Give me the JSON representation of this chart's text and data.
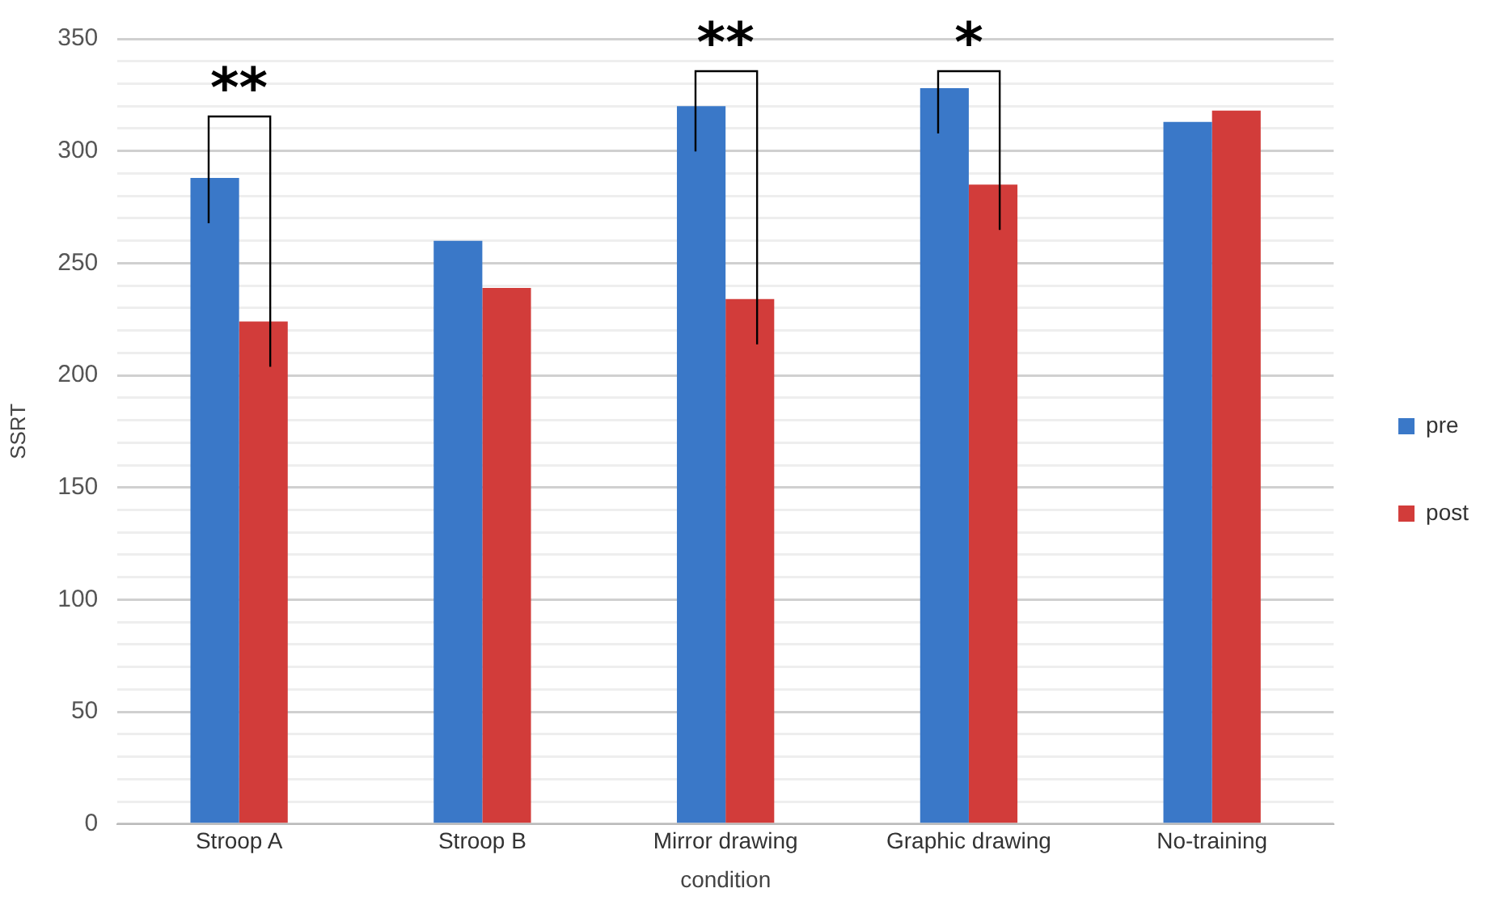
{
  "chart_data": {
    "type": "bar",
    "xlabel": "condition",
    "ylabel": "SSRT",
    "categories": [
      "Stroop A",
      "Stroop B",
      "Mirror drawing",
      "Graphic drawing",
      "No-training"
    ],
    "series": [
      {
        "name": "pre",
        "color": "#3a78c8",
        "values": [
          288,
          260,
          320,
          328,
          313
        ]
      },
      {
        "name": "post",
        "color": "#d23c3a",
        "values": [
          224,
          239,
          234,
          285,
          318
        ]
      }
    ],
    "ylim": [
      0,
      350
    ],
    "yticks": [
      0,
      {
        "value": 10,
        "label": null
      },
      {
        "value": 20,
        "label": null
      },
      {
        "value": 30,
        "label": null
      },
      {
        "value": 40,
        "label": null
      },
      50,
      {
        "value": 60,
        "label": null
      },
      {
        "value": 70,
        "label": null
      },
      {
        "value": 80,
        "label": null
      },
      {
        "value": 90,
        "label": null
      },
      100,
      {
        "value": 110,
        "label": null
      },
      {
        "value": 120,
        "label": null
      },
      {
        "value": 130,
        "label": null
      },
      {
        "value": 140,
        "label": null
      },
      150,
      {
        "value": 160,
        "label": null
      },
      {
        "value": 170,
        "label": null
      },
      {
        "value": 180,
        "label": null
      },
      {
        "value": 190,
        "label": null
      },
      200,
      {
        "value": 210,
        "label": null
      },
      {
        "value": 220,
        "label": null
      },
      {
        "value": 230,
        "label": null
      },
      {
        "value": 240,
        "label": null
      },
      250,
      {
        "value": 260,
        "label": null
      },
      {
        "value": 270,
        "label": null
      },
      {
        "value": 280,
        "label": null
      },
      {
        "value": 290,
        "label": null
      },
      300,
      {
        "value": 310,
        "label": null
      },
      {
        "value": 320,
        "label": null
      },
      {
        "value": 330,
        "label": null
      },
      {
        "value": 340,
        "label": null
      },
      350
    ],
    "grid": "y",
    "legend": "right",
    "annotations": [
      "**",
      "**",
      "*"
    ]
  }
}
